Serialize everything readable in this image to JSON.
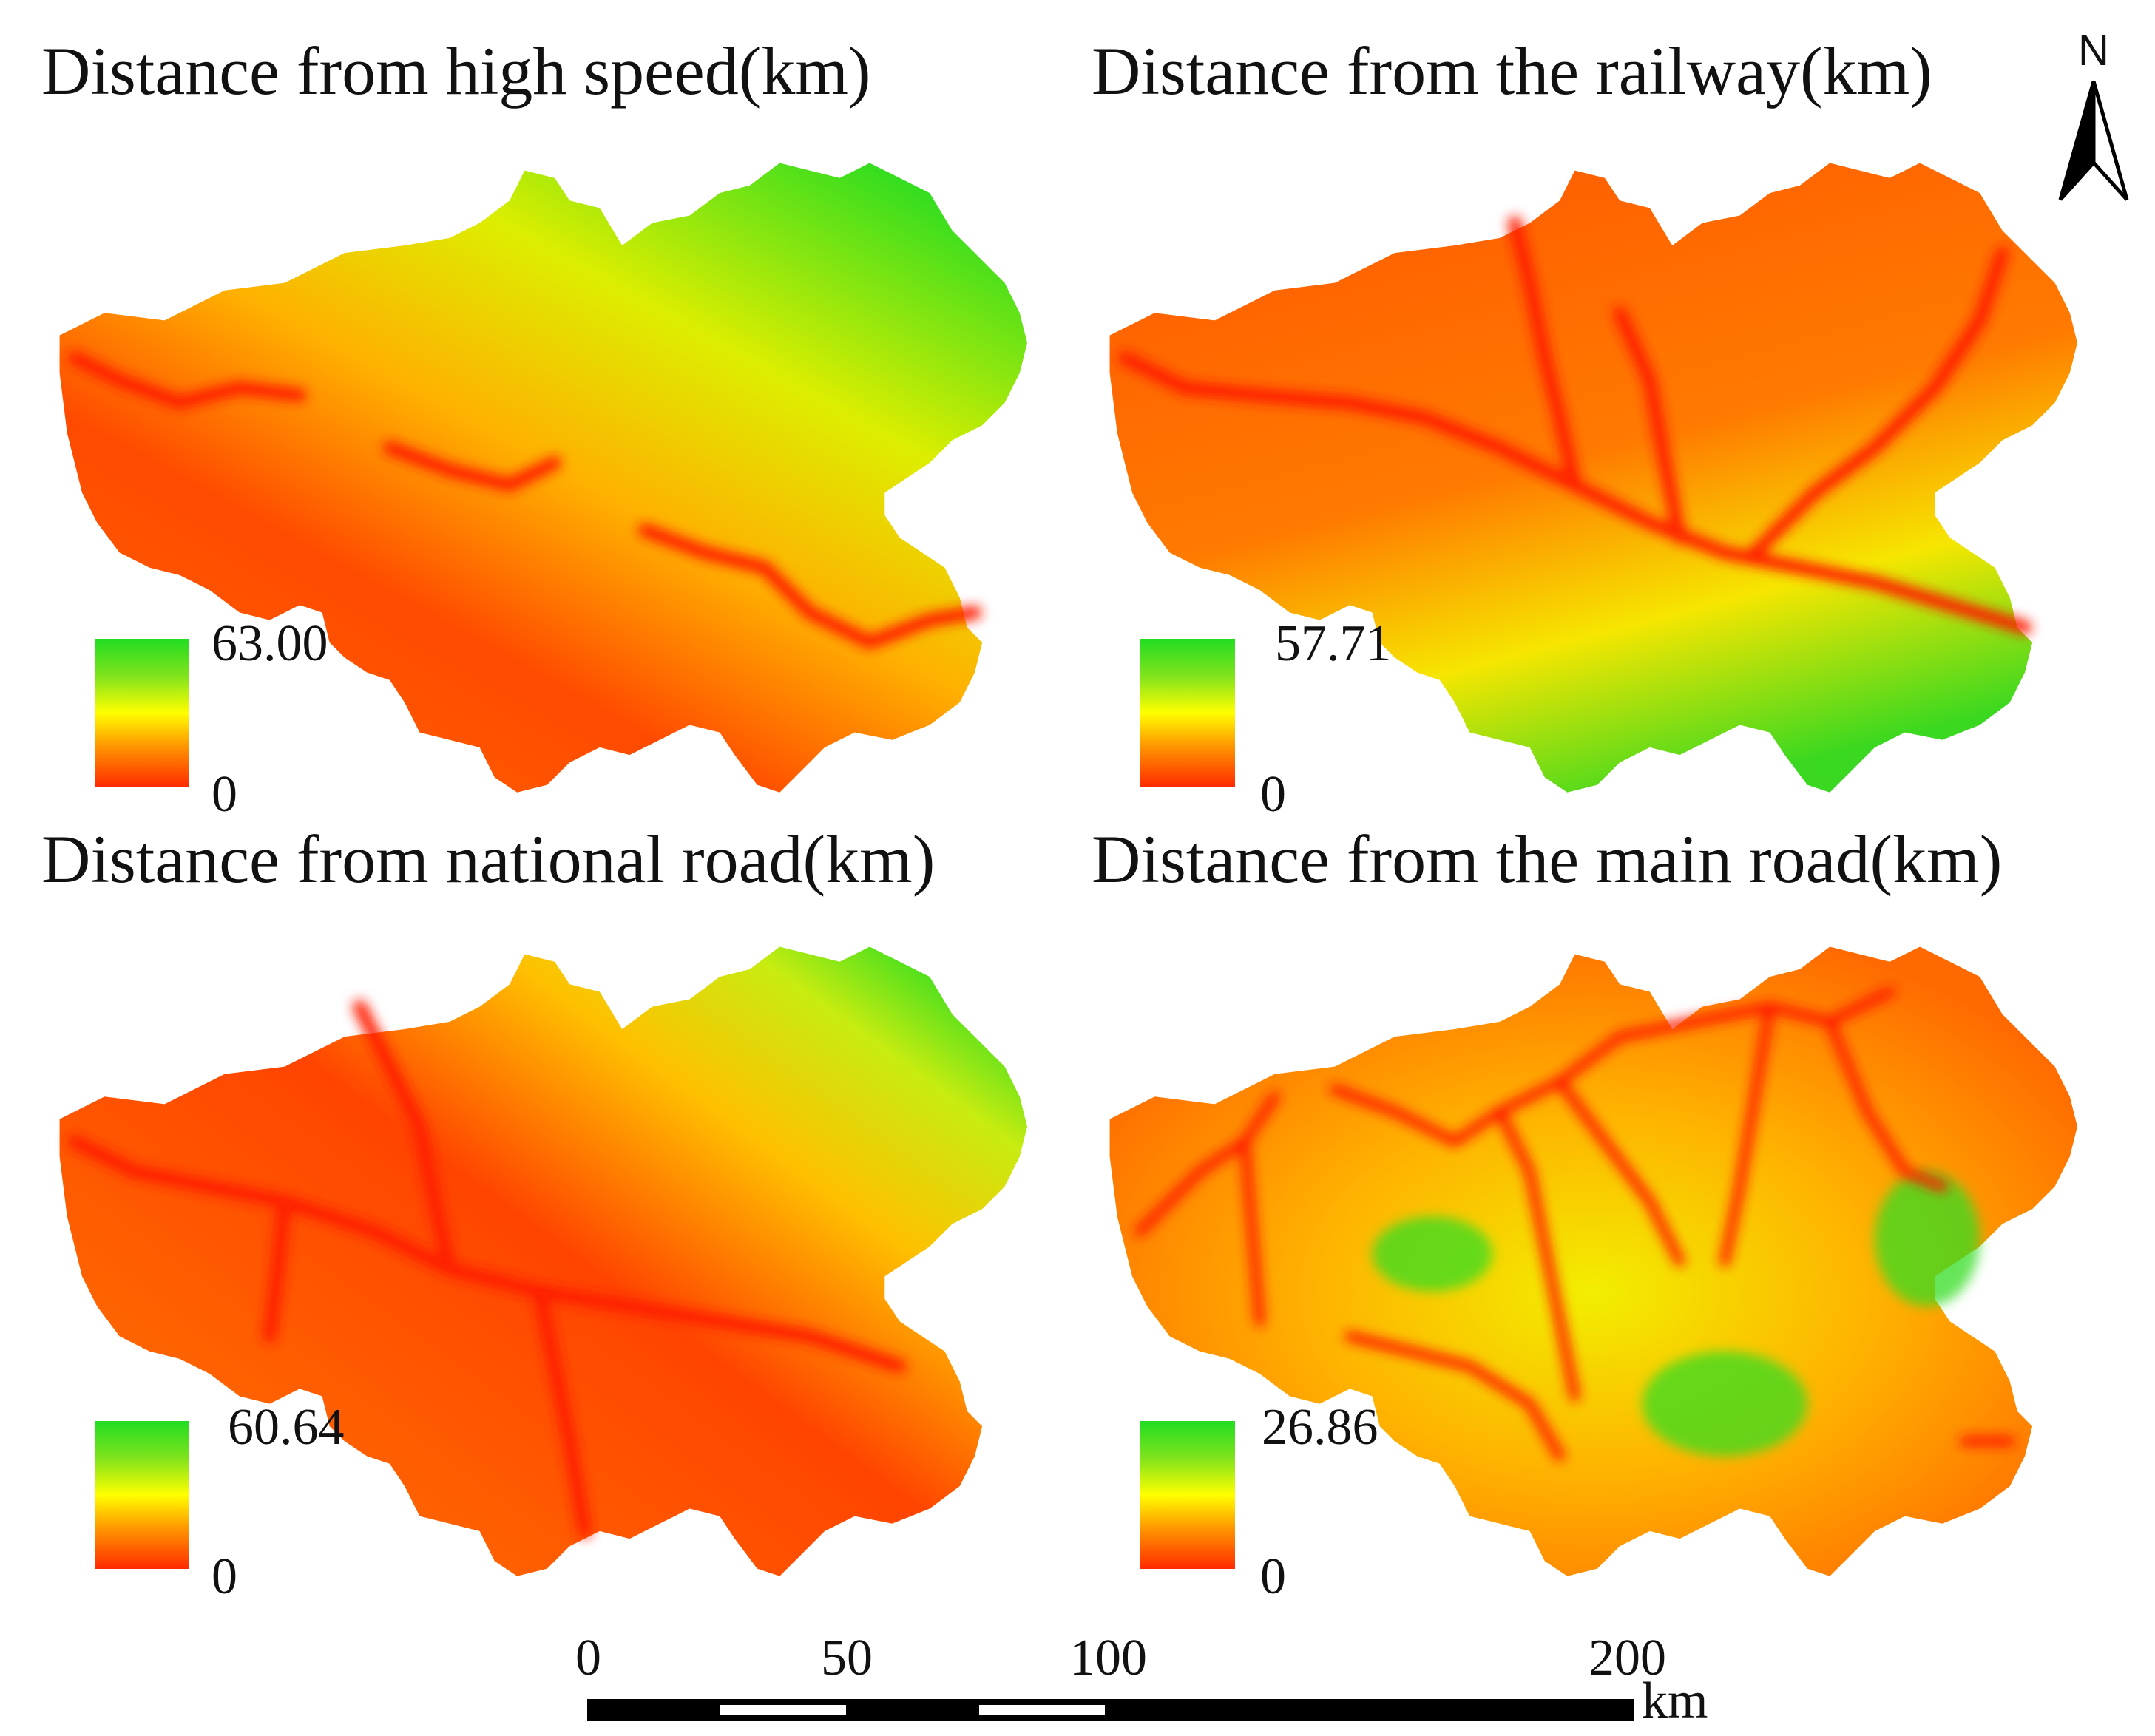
{
  "panels": [
    {
      "title": "Distance from high speed(km)",
      "legend_max": "63.00",
      "legend_min": "0"
    },
    {
      "title": "Distance from the railway(km)",
      "legend_max": "57.71",
      "legend_min": "0"
    },
    {
      "title": "Distance from national road(km)",
      "legend_max": "60.64",
      "legend_min": "0"
    },
    {
      "title": "Distance from the main road(km)",
      "legend_max": "26.86",
      "legend_min": "0"
    }
  ],
  "legend_colors": {
    "high": "#22dd22",
    "mid": "#ffff00",
    "low": "#ff2a00"
  },
  "north_arrow": {
    "label": "N",
    "icon": "north-arrow-icon"
  },
  "scale_bar": {
    "ticks": [
      "0",
      "50",
      "100",
      "200"
    ],
    "unit": "km"
  }
}
